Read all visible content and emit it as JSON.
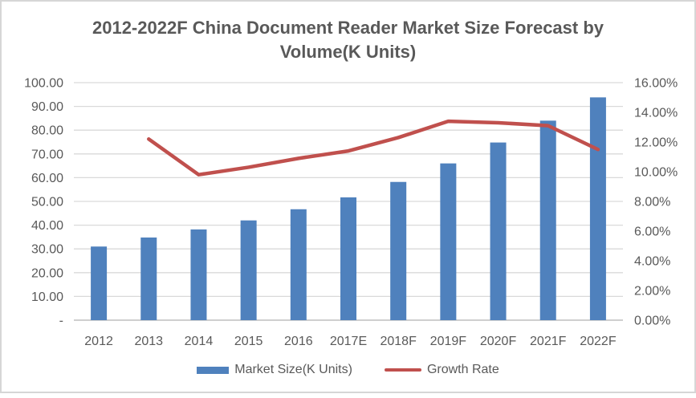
{
  "title": {
    "line1": "2012-2022F China Document Reader Market Size Forecast by",
    "line2": "Volume(K Units)"
  },
  "legend": {
    "items": [
      {
        "label": "Market Size(K Units)",
        "marker": "bar-swatch",
        "color": "#4F81BD"
      },
      {
        "label": "Growth Rate",
        "marker": "line-swatch",
        "color": "#C0504D"
      }
    ]
  },
  "chart_data": {
    "type": "bar",
    "subtype": "bar-line-combo",
    "title": "2012-2022F China Document Reader Market Size Forecast by Volume(K Units)",
    "categories": [
      "2012",
      "2013",
      "2014",
      "2015",
      "2016",
      "2017E",
      "2018F",
      "2019F",
      "2020F",
      "2021F",
      "2022F"
    ],
    "series": [
      {
        "name": "Market Size(K Units)",
        "type": "bar",
        "axis": "left",
        "color": "#4F81BD",
        "values": [
          31.0,
          34.8,
          38.2,
          42.0,
          46.7,
          51.7,
          58.2,
          66.0,
          74.8,
          84.0,
          93.8
        ]
      },
      {
        "name": "Growth Rate",
        "type": "line",
        "axis": "right",
        "unit": "%",
        "color": "#C0504D",
        "values": [
          null,
          12.2,
          9.8,
          10.3,
          10.9,
          11.4,
          12.3,
          13.4,
          13.3,
          13.1,
          11.5
        ]
      }
    ],
    "left_axis": {
      "min": 0,
      "max": 100,
      "tick_labels": [
        "100.00",
        "90.00",
        "80.00",
        "70.00",
        "60.00",
        "50.00",
        "40.00",
        "30.00",
        "20.00",
        "10.00",
        "-"
      ]
    },
    "right_axis": {
      "min": 0,
      "max": 16,
      "tick_labels": [
        "16.00%",
        "14.00%",
        "12.00%",
        "10.00%",
        "8.00%",
        "6.00%",
        "4.00%",
        "2.00%",
        "0.00%"
      ]
    },
    "grid": true,
    "legend_position": "bottom"
  },
  "colors": {
    "bar": "#4F81BD",
    "line": "#C0504D",
    "gridline": "#D9D9D9",
    "axis_line": "#BFBFBF",
    "text": "#595959",
    "frame_border": "#D6D6D6"
  }
}
